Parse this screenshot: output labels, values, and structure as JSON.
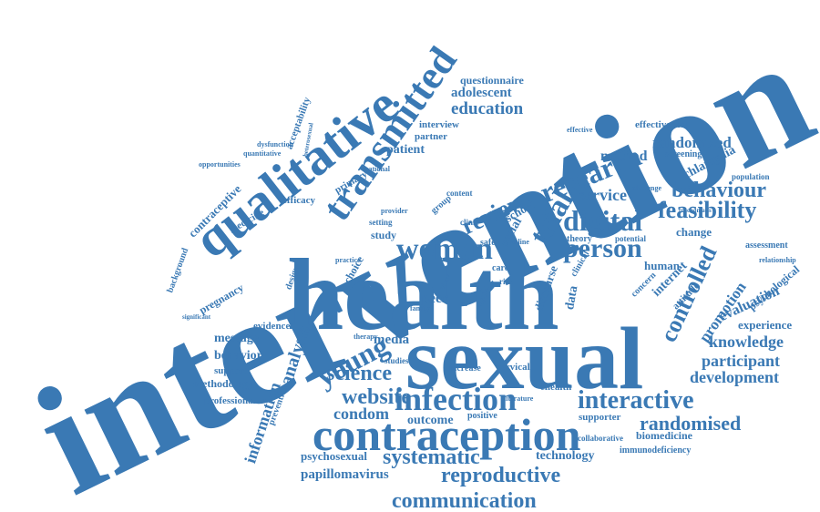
{
  "colors": {
    "background": "#ffffff",
    "text": "#3a79b4",
    "text_light": "#5d93c4"
  },
  "words": {
    "intervention": "intervention",
    "health": "health",
    "sexual": "sexual",
    "contraception": "contraception",
    "qualitative": "qualitative",
    "transmitted": "transmitted",
    "woman": "woman",
    "infection": "infection",
    "research": "research",
    "trial": "trial",
    "digital": "digital",
    "person": "person",
    "feasibility": "feasibility",
    "behaviour": "behaviour",
    "controlled": "controlled",
    "review": "review",
    "young": "young",
    "science": "science",
    "website": "website",
    "interactive": "interactive",
    "randomised": "randomised",
    "systematic": "systematic",
    "reproductive": "reproductive",
    "communication": "communication",
    "education": "education",
    "adolescent": "adolescent",
    "questionnaire": "questionnaire",
    "method": "method",
    "randomized": "randomized",
    "chlamydia": "chlamydia",
    "service": "service",
    "knowledge": "knowledge",
    "participant": "participant",
    "development": "development",
    "evaluation": "evaluation",
    "promotion": "promotion",
    "experience": "experience",
    "analysis": "analysis",
    "information": "information",
    "condom": "condom",
    "outcome": "outcome",
    "technology": "technology",
    "papillomavirus": "papillomavirus",
    "psychosexual": "psychosexual",
    "message": "message",
    "behavior": "behavior",
    "support": "support",
    "methodology": "methodology",
    "professional": "professional",
    "evidence": "evidence",
    "pregnancy": "pregnancy",
    "contraceptive": "contraceptive",
    "medicine": "medicine",
    "efficacy": "efficacy",
    "primary": "primary",
    "study": "study",
    "media": "media",
    "internet": "internet",
    "human": "human",
    "change": "change",
    "psychological": "psychological",
    "assessment": "assessment",
    "population": "population",
    "screening": "screening",
    "effectiveness": "effectiveness",
    "biomedicine": "biomedicine",
    "immunodeficiency": "immunodeficiency",
    "supporter": "supporter",
    "collaborative": "collaborative",
    "ehealth": "ehealth",
    "cervical": "cervical",
    "increase": "increase",
    "positive": "positive",
    "school": "school",
    "social": "social",
    "patient": "patient",
    "partner": "partner",
    "interview": "interview",
    "acceptability": "acceptability",
    "opportunities": "opportunities",
    "dysfunction": "dysfunction",
    "quantitative": "quantitative",
    "background": "background",
    "design": "design",
    "choice": "choice",
    "prevention": "prevention",
    "attitude": "attitude",
    "theory": "theory",
    "potential": "potential",
    "relationship": "relationship",
    "concern": "concern",
    "peer": "peer",
    "care": "care",
    "data": "data",
    "discourse": "discourse",
    "clinical": "clinical",
    "result": "result",
    "provider": "provider",
    "content": "content",
    "setting": "setting",
    "national": "national",
    "group": "group",
    "safer": "safer",
    "practice": "practice",
    "studies": "studies",
    "effective": "effective",
    "challenge": "challenge",
    "trachomatis": "trachomatis",
    "heterosexual": "heterosexual",
    "significant": "significant",
    "therapy": "therapy",
    "clinic": "clinic",
    "risk": "risk",
    "sti": "sti",
    "online": "online",
    "family": "family",
    "literature": "literature",
    "view": "view"
  }
}
